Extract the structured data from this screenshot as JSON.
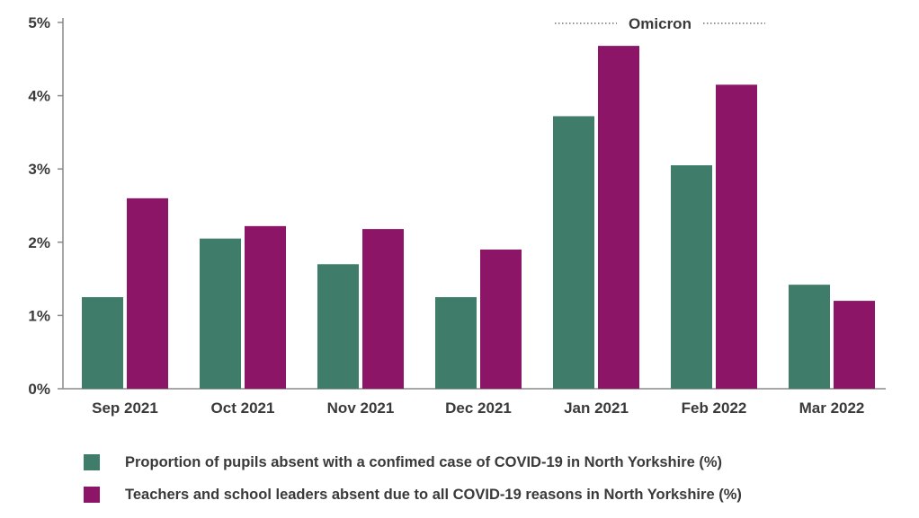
{
  "chart_data": {
    "type": "bar",
    "categories": [
      "Sep 2021",
      "Oct 2021",
      "Nov 2021",
      "Dec 2021",
      "Jan 2021",
      "Feb 2022",
      "Mar 2022"
    ],
    "series": [
      {
        "name": "Proportion of pupils absent with a confimed case of COVID-19 in North Yorkshire (%)",
        "color": "#3f7d6a",
        "values": [
          1.25,
          2.05,
          1.7,
          1.25,
          3.72,
          3.05,
          1.42
        ]
      },
      {
        "name": "Teachers and school leaders absent due to all COVID-19 reasons in North Yorkshire (%)",
        "color": "#8c1568",
        "values": [
          2.6,
          2.22,
          2.18,
          1.9,
          4.68,
          4.15,
          1.2
        ]
      }
    ],
    "yticks": [
      "0%",
      "1%",
      "2%",
      "3%",
      "4%",
      "5%"
    ],
    "ylim": [
      0,
      5
    ],
    "annotation": {
      "label": "Omicron",
      "span": [
        "Jan 2021",
        "Feb 2022"
      ]
    },
    "grid": false,
    "legend_position": "bottom"
  }
}
